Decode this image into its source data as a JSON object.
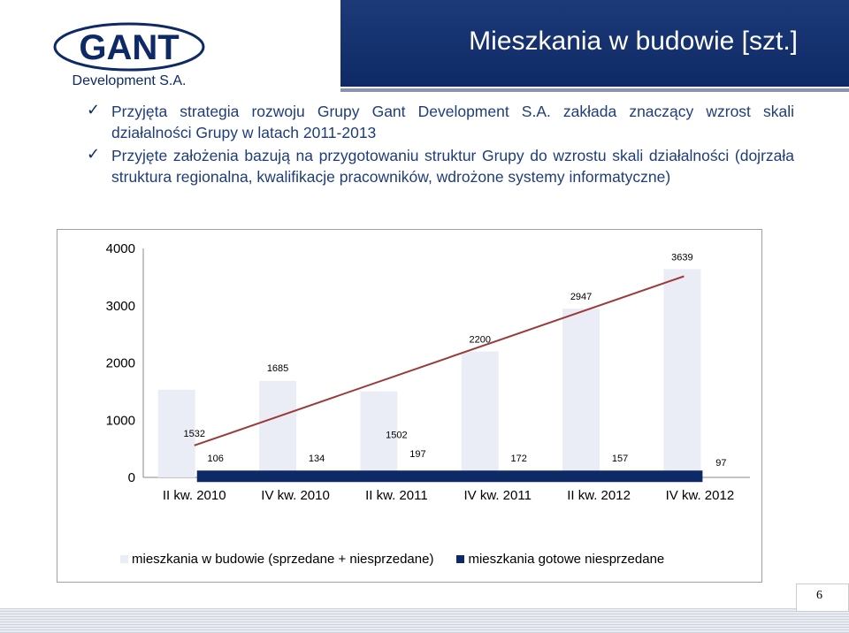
{
  "header": {
    "logo_main": "GANT",
    "logo_sub": "Development S.A.",
    "title": "Mieszkania w budowie [szt.]"
  },
  "bullets": [
    {
      "text": "Przyjęta strategia rozwoju Grupy Gant Development S.A. zakłada znaczący wzrost skali działalności Grupy w latach 2011-2013"
    },
    {
      "text": "Przyjęte założenia bazują na przygotowaniu struktur Grupy do wzrostu skali działalności (dojrzała struktura regionalna, kwalifikacje pracowników, wdrożone systemy informatyczne)"
    }
  ],
  "chart_data": {
    "type": "bar",
    "categories": [
      "II kw. 2010",
      "IV kw. 2010",
      "II kw. 2011",
      "IV kw. 2011",
      "II kw. 2012",
      "IV kw. 2012"
    ],
    "series": [
      {
        "name": "mieszkania w budowie (sprzedane + niesprzedane)",
        "values": [
          1532,
          1685,
          1502,
          2200,
          2947,
          3639
        ],
        "color": "#eaedf5"
      },
      {
        "name": "mieszkania gotowe niesprzedane",
        "values": [
          106,
          134,
          197,
          172,
          157,
          97
        ],
        "color": "#0e2a66"
      }
    ],
    "trendline": {
      "type": "linear",
      "color": "#9b3a3a"
    },
    "yticks": [
      0,
      1000,
      2000,
      3000,
      4000
    ],
    "ylim": [
      0,
      4000
    ],
    "legend_position": "bottom",
    "grid": false
  },
  "footer": {
    "page_number": "6"
  }
}
